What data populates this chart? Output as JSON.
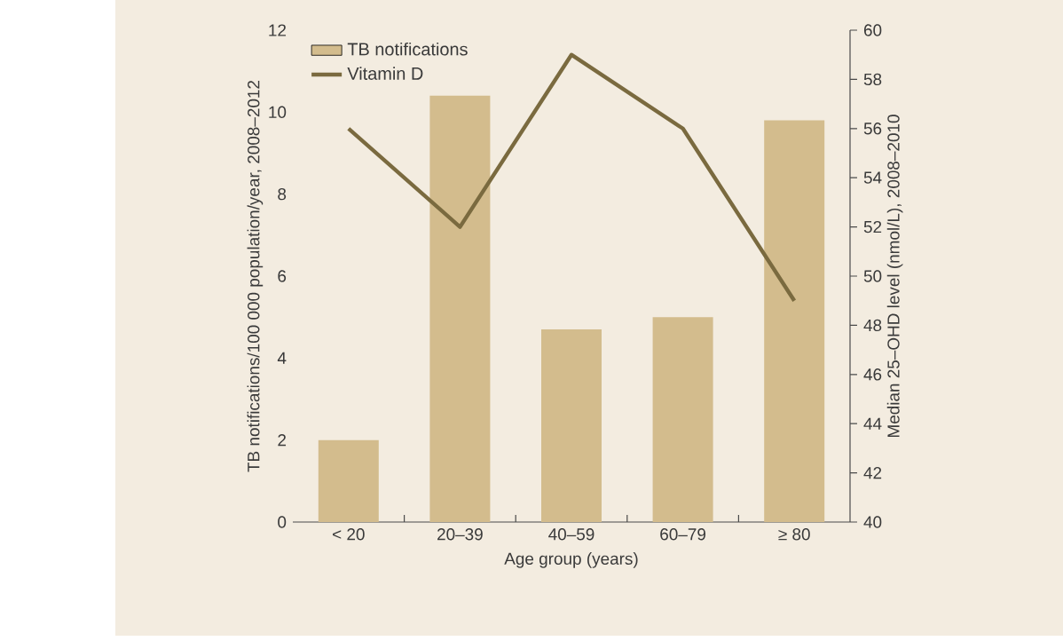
{
  "chart_data": {
    "type": "bar",
    "xlabel": "Age group (years)",
    "ylabel": "TB notifications/100 000 population/year, 2008–2012",
    "y2label": "Median 25–OHD level (nmol/L), 2008–2010",
    "categories": [
      "< 20",
      "20–39",
      "40–59",
      "60–79",
      "≥ 80"
    ],
    "series": [
      {
        "name": "TB notifications",
        "color": "#d3bc8d",
        "values": [
          2.0,
          10.4,
          4.7,
          5.0,
          9.8
        ]
      },
      {
        "name": "Vitamin D",
        "type": "line",
        "axis": "y2",
        "color": "#7a6a3f",
        "values": [
          56,
          52,
          59,
          56,
          49
        ]
      }
    ],
    "ylim": [
      0,
      12
    ],
    "yticks": [
      0,
      2,
      4,
      6,
      8,
      10,
      12
    ],
    "y2lim": [
      40,
      60
    ],
    "y2ticks": [
      40,
      42,
      44,
      46,
      48,
      50,
      52,
      54,
      56,
      58,
      60
    ],
    "legend": "top left"
  }
}
